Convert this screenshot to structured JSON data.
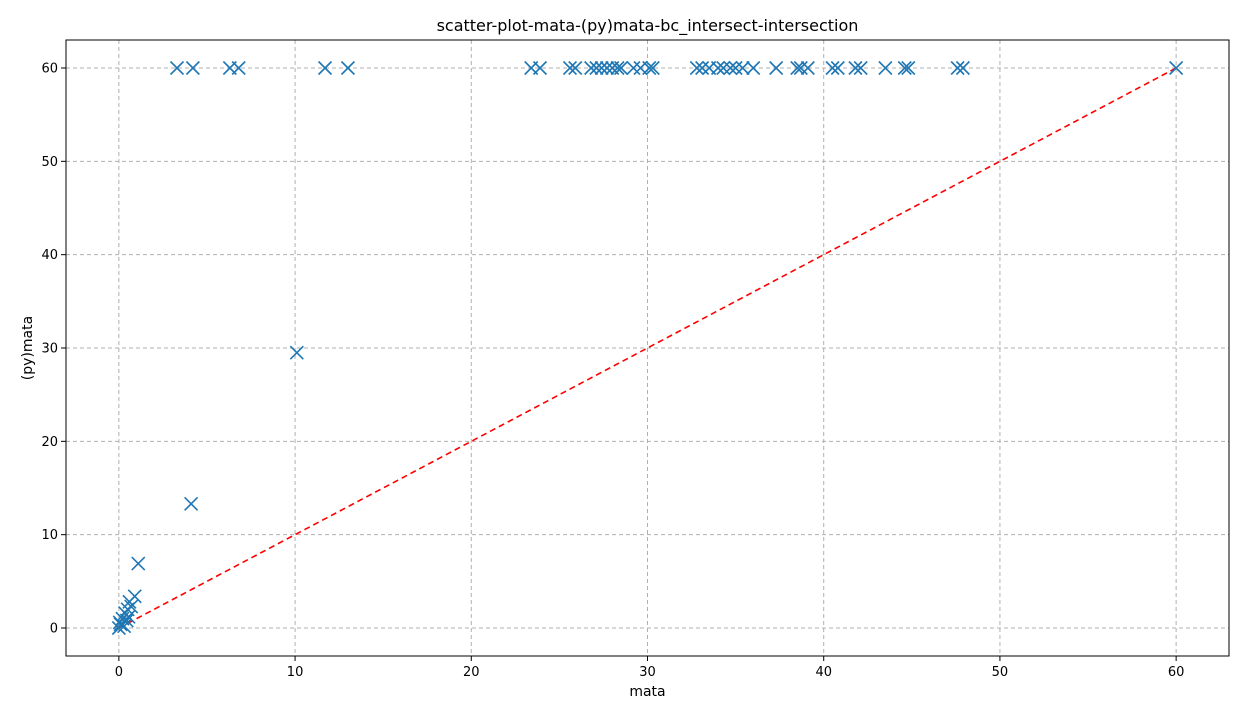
{
  "chart_data": {
    "type": "scatter",
    "title": "scatter-plot-mata-(py)mata-bc_intersect-intersection",
    "xlabel": "mata",
    "ylabel": "(py)mata",
    "xlim": [
      -3,
      63
    ],
    "ylim": [
      -3,
      63
    ],
    "xticks": [
      0,
      10,
      20,
      30,
      40,
      50,
      60
    ],
    "yticks": [
      0,
      10,
      20,
      30,
      40,
      50,
      60
    ],
    "grid": true,
    "marker": "x",
    "marker_color": "#1f77b4",
    "reference_line": {
      "x": [
        0,
        60
      ],
      "y": [
        0,
        60
      ],
      "color": "#ff0000",
      "style": "dashed"
    },
    "series": [
      {
        "points": [
          {
            "x": 0.0,
            "y": 0.0
          },
          {
            "x": 0.05,
            "y": 0.6
          },
          {
            "x": 0.1,
            "y": 0.4
          },
          {
            "x": 0.2,
            "y": 1.0
          },
          {
            "x": 0.3,
            "y": 0.2
          },
          {
            "x": 0.35,
            "y": 1.6
          },
          {
            "x": 0.45,
            "y": 0.8
          },
          {
            "x": 0.5,
            "y": 2.0
          },
          {
            "x": 0.55,
            "y": 1.2
          },
          {
            "x": 0.6,
            "y": 2.8
          },
          {
            "x": 0.7,
            "y": 2.3
          },
          {
            "x": 0.9,
            "y": 3.4
          },
          {
            "x": 1.1,
            "y": 6.9
          },
          {
            "x": 4.1,
            "y": 13.3
          },
          {
            "x": 10.1,
            "y": 29.5
          },
          {
            "x": 3.3,
            "y": 60
          },
          {
            "x": 4.2,
            "y": 60
          },
          {
            "x": 6.3,
            "y": 60
          },
          {
            "x": 6.8,
            "y": 60
          },
          {
            "x": 11.7,
            "y": 60
          },
          {
            "x": 13.0,
            "y": 60
          },
          {
            "x": 23.4,
            "y": 60
          },
          {
            "x": 23.9,
            "y": 60
          },
          {
            "x": 25.6,
            "y": 60
          },
          {
            "x": 25.9,
            "y": 60
          },
          {
            "x": 26.8,
            "y": 60
          },
          {
            "x": 27.1,
            "y": 60
          },
          {
            "x": 27.4,
            "y": 60
          },
          {
            "x": 27.7,
            "y": 60
          },
          {
            "x": 28.0,
            "y": 60
          },
          {
            "x": 28.3,
            "y": 60
          },
          {
            "x": 28.5,
            "y": 60
          },
          {
            "x": 29.2,
            "y": 60
          },
          {
            "x": 29.6,
            "y": 60
          },
          {
            "x": 30.1,
            "y": 60
          },
          {
            "x": 30.3,
            "y": 60
          },
          {
            "x": 32.8,
            "y": 60
          },
          {
            "x": 33.1,
            "y": 60
          },
          {
            "x": 33.5,
            "y": 60
          },
          {
            "x": 34.0,
            "y": 60
          },
          {
            "x": 34.3,
            "y": 60
          },
          {
            "x": 34.7,
            "y": 60
          },
          {
            "x": 35.0,
            "y": 60
          },
          {
            "x": 35.4,
            "y": 60
          },
          {
            "x": 36.0,
            "y": 60
          },
          {
            "x": 37.3,
            "y": 60
          },
          {
            "x": 38.5,
            "y": 60
          },
          {
            "x": 38.7,
            "y": 60
          },
          {
            "x": 39.1,
            "y": 60
          },
          {
            "x": 40.5,
            "y": 60
          },
          {
            "x": 40.8,
            "y": 60
          },
          {
            "x": 41.8,
            "y": 60
          },
          {
            "x": 42.1,
            "y": 60
          },
          {
            "x": 43.5,
            "y": 60
          },
          {
            "x": 44.6,
            "y": 60
          },
          {
            "x": 44.8,
            "y": 60
          },
          {
            "x": 47.6,
            "y": 60
          },
          {
            "x": 47.9,
            "y": 60
          },
          {
            "x": 60.0,
            "y": 60
          }
        ]
      }
    ]
  }
}
